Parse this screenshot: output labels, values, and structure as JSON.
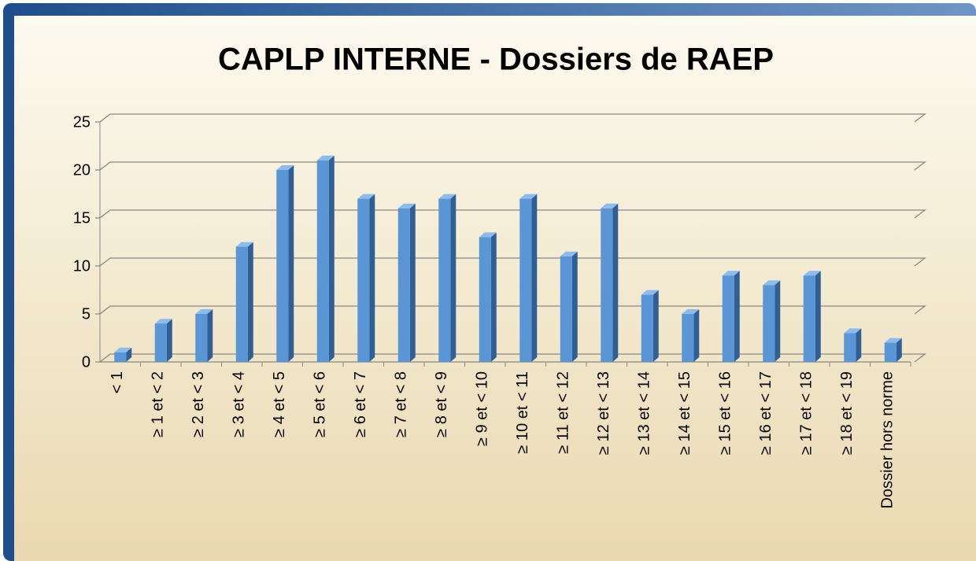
{
  "chart_data": {
    "type": "bar3d",
    "title": "CAPLP INTERNE - Dossiers de RAEP",
    "categories": [
      "< 1",
      "≥ 1 et < 2",
      "≥ 2 et < 3",
      "≥ 3 et < 4",
      "≥ 4 et < 5",
      "≥ 5 et < 6",
      "≥ 6 et < 7",
      "≥ 7 et < 8",
      "≥ 8 et < 9",
      "≥ 9 et < 10",
      "≥ 10 et < 11",
      "≥ 11 et < 12",
      "≥ 12 et < 13",
      "≥ 13 et < 14",
      "≥ 14 et < 15",
      "≥ 15 et < 16",
      "≥ 16 et < 17",
      "≥ 17 et < 18",
      "≥ 18 et < 19",
      "Dossier hors norme"
    ],
    "values": [
      1,
      4,
      5,
      12,
      20,
      21,
      17,
      16,
      17,
      13,
      17,
      11,
      16,
      7,
      5,
      9,
      8,
      9,
      3,
      2
    ],
    "color": "#5a96d6",
    "ylim": [
      0,
      25
    ],
    "yticks": [
      0,
      5,
      10,
      15,
      20,
      25
    ],
    "grid": true
  }
}
